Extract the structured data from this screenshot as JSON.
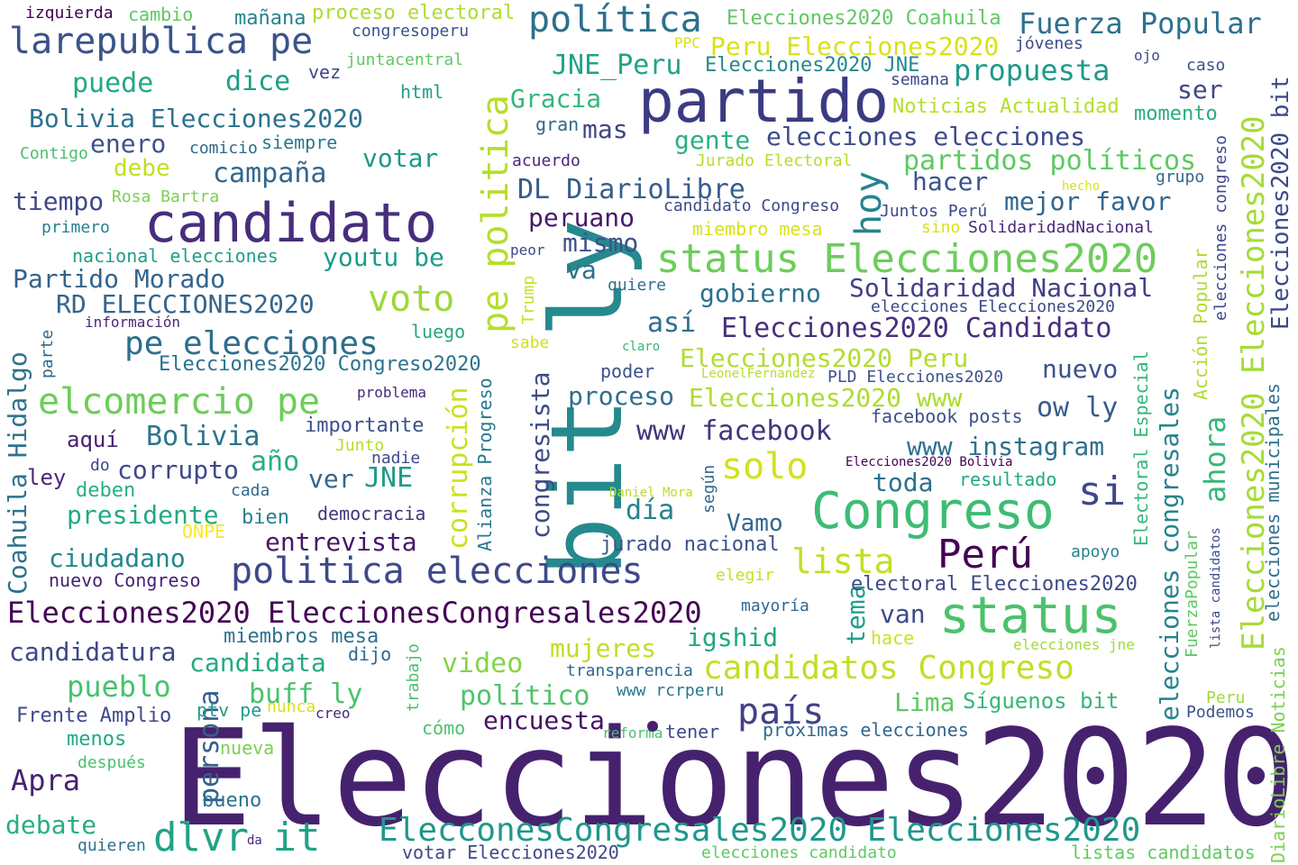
{
  "words": [
    {
      "text": "Elecciones2020",
      "color": "#46226e"
    },
    {
      "text": "bit ly",
      "color": "#25898d"
    },
    {
      "text": "partido",
      "color": "#3b3b82"
    },
    {
      "text": "candidato",
      "color": "#472e7c"
    },
    {
      "text": "Congreso",
      "color": "#3dbc74"
    },
    {
      "text": "status",
      "color": "#4cc26c"
    },
    {
      "text": "status Elecciones2020",
      "color": "#6ccd5a"
    },
    {
      "text": "politica elecciones",
      "color": "#3e4989"
    },
    {
      "text": "pe politica",
      "color": "#b5de2b"
    },
    {
      "text": "política",
      "color": "#2e6f8e"
    },
    {
      "text": "larepublica pe",
      "color": "#3a538b"
    },
    {
      "text": "elcomercio pe",
      "color": "#6ccd5a"
    },
    {
      "text": "ElecconesCongresales2020 Elecciones2020",
      "color": "#1f988b"
    },
    {
      "text": "Elecciones2020 EleccionesCongresales2020",
      "color": "#440154"
    },
    {
      "text": "candidatos Congreso",
      "color": "#c0df25"
    },
    {
      "text": "si",
      "color": "#3e4989"
    },
    {
      "text": "Perú",
      "color": "#440154"
    },
    {
      "text": "voto",
      "color": "#9cd93b"
    },
    {
      "text": "pe elecciones",
      "color": "#2e6e8e"
    },
    {
      "text": "dlvr it",
      "color": "#20a386"
    },
    {
      "text": "solo",
      "color": "#d2e21b"
    },
    {
      "text": "hoy",
      "color": "#25858e"
    },
    {
      "text": "país",
      "color": "#424186"
    },
    {
      "text": "lista",
      "color": "#c2df23"
    },
    {
      "text": "Elecciones2020 Elecciones2020",
      "color": "#a5db36"
    },
    {
      "text": "Solidaridad Nacional",
      "color": "#433e85"
    },
    {
      "text": "Fuerza Popular",
      "color": "#2d718e"
    },
    {
      "text": "propuesta",
      "color": "#1f9a8a"
    },
    {
      "text": "elecciones elecciones",
      "color": "#3e4c8a"
    },
    {
      "text": "partidos políticos",
      "color": "#5ec962"
    },
    {
      "text": "Elecciones2020 Candidato",
      "color": "#472f7d"
    },
    {
      "text": "ahora",
      "color": "#35b779"
    },
    {
      "text": "corrupción",
      "color": "#cae11f"
    },
    {
      "text": "Coahuila Hidalgo",
      "color": "#2c728e"
    },
    {
      "text": "elecciones congresales",
      "color": "#26828e"
    },
    {
      "text": "Elecciones2020 bit",
      "color": "#3e4989"
    },
    {
      "text": "www facebook",
      "color": "#46337e"
    },
    {
      "text": "www instagram",
      "color": "#2d708e"
    },
    {
      "text": "Bolivia Elecciones2020",
      "color": "#2c728e"
    },
    {
      "text": "Partido Morado",
      "color": "#33638d"
    },
    {
      "text": "RD ELECCIONES2020",
      "color": "#32658e"
    },
    {
      "text": "presidente",
      "color": "#23a983"
    },
    {
      "text": "campaña",
      "color": "#31688e"
    },
    {
      "text": "gobierno",
      "color": "#2c718e"
    },
    {
      "text": "DL DiarioLibre",
      "color": "#365d8d"
    },
    {
      "text": "Elecciones2020 Peru",
      "color": "#b2dd2d"
    },
    {
      "text": "Elecciones2020 www",
      "color": "#addc30"
    },
    {
      "text": "proceso",
      "color": "#2e6f8e"
    },
    {
      "text": "youtu be",
      "color": "#1e9b8a"
    },
    {
      "text": "mejor favor",
      "color": "#31668e"
    },
    {
      "text": "peruano",
      "color": "#48186a"
    },
    {
      "text": "mismo",
      "color": "#3b518b"
    },
    {
      "text": "buff ly",
      "color": "#4ac16d"
    },
    {
      "text": "persona",
      "color": "#355f8d"
    },
    {
      "text": "político",
      "color": "#4fc46a"
    },
    {
      "text": "encuesta",
      "color": "#471365"
    },
    {
      "text": "video",
      "color": "#84d44b"
    },
    {
      "text": "mujeres",
      "color": "#bddf26"
    },
    {
      "text": "candidata",
      "color": "#24aa83"
    },
    {
      "text": "candidatura",
      "color": "#3f4788"
    },
    {
      "text": "ciudadano",
      "color": "#23888e"
    },
    {
      "text": "Apra",
      "color": "#482173"
    },
    {
      "text": "debate",
      "color": "#29af7f"
    },
    {
      "text": "pueblo",
      "color": "#4ac16d"
    },
    {
      "text": "congresista",
      "color": "#3e4a89"
    },
    {
      "text": "Vamo",
      "color": "#31688e"
    },
    {
      "text": "entrevista",
      "color": "#481769"
    },
    {
      "text": "corrupto",
      "color": "#3f4889"
    },
    {
      "text": "Bolivia",
      "color": "#2c738e"
    },
    {
      "text": "tema",
      "color": "#1f9e89"
    },
    {
      "text": "Lima",
      "color": "#5cc863"
    },
    {
      "text": "igshid",
      "color": "#22a785"
    },
    {
      "text": "van",
      "color": "#3e4989"
    },
    {
      "text": "ow ly",
      "color": "#365c8d"
    },
    {
      "text": "toda",
      "color": "#2d708e"
    },
    {
      "text": "nuevo",
      "color": "#3b528b"
    },
    {
      "text": "Gracia",
      "color": "#35b779"
    },
    {
      "text": "mas",
      "color": "#404588"
    },
    {
      "text": "gente",
      "color": "#2ab07f"
    },
    {
      "text": "ser",
      "color": "#3f4788"
    },
    {
      "text": "hacer",
      "color": "#3b528b"
    },
    {
      "text": "JNE_Peru",
      "color": "#20a386"
    },
    {
      "text": "Peru Elecciones2020",
      "color": "#d8e219"
    },
    {
      "text": "Elecciones2020 Coahuila",
      "color": "#5ec962"
    },
    {
      "text": "Elecciones2020 JNE",
      "color": "#23888e"
    },
    {
      "text": "Noticias Actualidad",
      "color": "#b5de2b"
    },
    {
      "text": "momento",
      "color": "#26ad81"
    },
    {
      "text": "votar",
      "color": "#1f988b"
    },
    {
      "text": "enero",
      "color": "#3b528b"
    },
    {
      "text": "debe",
      "color": "#c2df23"
    },
    {
      "text": "tiempo",
      "color": "#3e4989"
    },
    {
      "text": "puede",
      "color": "#22a884"
    },
    {
      "text": "dice",
      "color": "#1f9e89"
    },
    {
      "text": "va",
      "color": "#2d718e"
    },
    {
      "text": "así",
      "color": "#2c718e"
    },
    {
      "text": "año",
      "color": "#28ae80"
    },
    {
      "text": "ver",
      "color": "#31678e"
    },
    {
      "text": "JNE",
      "color": "#1f9a8a"
    },
    {
      "text": "día",
      "color": "#26828e"
    },
    {
      "text": "Alianza Progreso",
      "color": "#29798e"
    },
    {
      "text": "Acción Popular",
      "color": "#b0dd2f"
    },
    {
      "text": "Electoral Especial",
      "color": "#35b779"
    },
    {
      "text": "elecciones municipales",
      "color": "#2e6f8e"
    },
    {
      "text": "elecciones congreso",
      "color": "#3f4788"
    },
    {
      "text": "DiarioLibre Noticias",
      "color": "#7ad151"
    },
    {
      "text": "FuerzaPopular",
      "color": "#5cc863"
    },
    {
      "text": "lista candidatos",
      "color": "#3e4989"
    },
    {
      "text": "Trump",
      "color": "#c8e020"
    },
    {
      "text": "trabajo",
      "color": "#4ac16d"
    },
    {
      "text": "según",
      "color": "#31688e"
    },
    {
      "text": "parte",
      "color": "#31688e"
    },
    {
      "text": "izquierda",
      "color": "#440154"
    },
    {
      "text": "cambio",
      "color": "#5ec962"
    },
    {
      "text": "mañana",
      "color": "#26828e"
    },
    {
      "text": "proceso electoral",
      "color": "#addc30"
    },
    {
      "text": "congresoperu",
      "color": "#3b528b"
    },
    {
      "text": "juntacentral",
      "color": "#5ec962"
    },
    {
      "text": "vez",
      "color": "#404588"
    },
    {
      "text": "html",
      "color": "#1f9e89"
    },
    {
      "text": "comicio",
      "color": "#31688e"
    },
    {
      "text": "siempre",
      "color": "#2a788e"
    },
    {
      "text": "Contigo",
      "color": "#4ac16d"
    },
    {
      "text": "Rosa Bartra",
      "color": "#7ad151"
    },
    {
      "text": "primero",
      "color": "#26828e"
    },
    {
      "text": "nacional elecciones",
      "color": "#1f9e89"
    },
    {
      "text": "información",
      "color": "#482878"
    },
    {
      "text": "luego",
      "color": "#22a884"
    },
    {
      "text": "sabe",
      "color": "#cde11d"
    },
    {
      "text": "claro",
      "color": "#35b779"
    },
    {
      "text": "poder",
      "color": "#3b528b"
    },
    {
      "text": "LeonelFernandez",
      "color": "#b5de2b"
    },
    {
      "text": "PLD Elecciones2020",
      "color": "#3b528b"
    },
    {
      "text": "Elecciones2020 Congreso2020",
      "color": "#2c728e"
    },
    {
      "text": "problema",
      "color": "#482878"
    },
    {
      "text": "importante",
      "color": "#3b528b"
    },
    {
      "text": "Junto",
      "color": "#b5de2b"
    },
    {
      "text": "nadie",
      "color": "#3e4989"
    },
    {
      "text": "aquí",
      "color": "#482173"
    },
    {
      "text": "ley",
      "color": "#482878"
    },
    {
      "text": "do",
      "color": "#3f4788"
    },
    {
      "text": "deben",
      "color": "#2ab07f"
    },
    {
      "text": "cada",
      "color": "#31688e"
    },
    {
      "text": "bien",
      "color": "#26828e"
    },
    {
      "text": "ONPE",
      "color": "#fde725"
    },
    {
      "text": "democracia",
      "color": "#46337e"
    },
    {
      "text": "jurado nacional",
      "color": "#3b528b"
    },
    {
      "text": "Daniel Mora",
      "color": "#b5de2b"
    },
    {
      "text": "elegir",
      "color": "#c8e020"
    },
    {
      "text": "mayoría",
      "color": "#31688e"
    },
    {
      "text": "electoral Elecciones2020",
      "color": "#3e4989"
    },
    {
      "text": "apoyo",
      "color": "#26828e"
    },
    {
      "text": "hace",
      "color": "#cde11d"
    },
    {
      "text": "elecciones jne",
      "color": "#9fda3a"
    },
    {
      "text": "Peru",
      "color": "#9fda3a"
    },
    {
      "text": "Podemos",
      "color": "#3b528b"
    },
    {
      "text": "Síguenos bit",
      "color": "#35b779"
    },
    {
      "text": "próximas elecciones",
      "color": "#31688e"
    },
    {
      "text": "tener",
      "color": "#3e4989"
    },
    {
      "text": "reforma",
      "color": "#4ac16d"
    },
    {
      "text": "cómo",
      "color": "#4ac16d"
    },
    {
      "text": "www rcrperu",
      "color": "#2a788e"
    },
    {
      "text": "transparencia",
      "color": "#31688e"
    },
    {
      "text": "nunca",
      "color": "#d8e219"
    },
    {
      "text": "creo",
      "color": "#482878"
    },
    {
      "text": "ptv pe",
      "color": "#1f9e89"
    },
    {
      "text": "dijo",
      "color": "#31688e"
    },
    {
      "text": "miembros mesa",
      "color": "#2c728e"
    },
    {
      "text": "Frente Amplio",
      "color": "#3e4989"
    },
    {
      "text": "menos",
      "color": "#22a884"
    },
    {
      "text": "nueva",
      "color": "#7ad151"
    },
    {
      "text": "después",
      "color": "#4ac16d"
    },
    {
      "text": "bueno",
      "color": "#2c728e"
    },
    {
      "text": "quieren",
      "color": "#2c728e"
    },
    {
      "text": "da",
      "color": "#482878"
    },
    {
      "text": "votar Elecciones2020",
      "color": "#3e4989"
    },
    {
      "text": "elecciones candidato",
      "color": "#5ec962"
    },
    {
      "text": "listas candidatos",
      "color": "#5ec962"
    },
    {
      "text": "PPC",
      "color": "#d8e219"
    },
    {
      "text": "jóvenes",
      "color": "#3e4989"
    },
    {
      "text": "ojo",
      "color": "#3e4989"
    },
    {
      "text": "caso",
      "color": "#3b528b"
    },
    {
      "text": "semana",
      "color": "#3e4989"
    },
    {
      "text": "gran",
      "color": "#31688e"
    },
    {
      "text": "acuerdo",
      "color": "#482878"
    },
    {
      "text": "Jurado Electoral",
      "color": "#b5de2b"
    },
    {
      "text": "hecho",
      "color": "#d8e219"
    },
    {
      "text": "grupo",
      "color": "#31688e"
    },
    {
      "text": "candidato Congreso",
      "color": "#3e4989"
    },
    {
      "text": "Juntos Perú",
      "color": "#3e4989"
    },
    {
      "text": "miembro mesa",
      "color": "#d8e219"
    },
    {
      "text": "sino",
      "color": "#d8e219"
    },
    {
      "text": "SolidaridadNacional",
      "color": "#482878"
    },
    {
      "text": "peor",
      "color": "#3e4989"
    },
    {
      "text": "quiere",
      "color": "#2c728e"
    },
    {
      "text": "elecciones Elecciones2020",
      "color": "#3e4989"
    },
    {
      "text": "nuevo Congreso",
      "color": "#482173"
    },
    {
      "text": "resultado",
      "color": "#22a884"
    },
    {
      "text": "Elecciones2020 Bolivia",
      "color": "#440154"
    },
    {
      "text": "facebook posts",
      "color": "#3b528b"
    }
  ]
}
